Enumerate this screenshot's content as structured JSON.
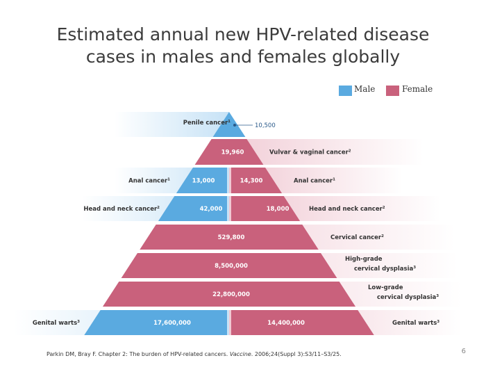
{
  "title_lines": [
    "Estimated annual new HPV-related disease",
    "cases in males and females globally"
  ],
  "legend": {
    "male": "Male",
    "female": "Female"
  },
  "colors": {
    "male": "#5aaae0",
    "female": "#c9617c",
    "male_fade": "#c6e2f6",
    "female_fade": "#f0c9d3",
    "label_text": "#333333",
    "value_text": "#ffffff"
  },
  "citation": {
    "prefix": "Parkin DM, Bray F. Chapter 2: The burden of HPV-related cancers.",
    "journal": "Vaccine",
    "suffix": ". 2006;24(Suppl  3):S3/11–S3/25."
  },
  "page_number": "6",
  "chart_data": {
    "type": "bar",
    "title": "Estimated annual new HPV-related disease cases in males and females globally",
    "series": [
      {
        "name": "Male",
        "values": [
          10500,
          null,
          13000,
          42000,
          null,
          null,
          null,
          17600000
        ]
      },
      {
        "name": "Female",
        "values": [
          null,
          19960,
          14300,
          18000,
          529800,
          8500000,
          22800000,
          14400000
        ]
      }
    ],
    "rows": [
      {
        "category": "Penile cancer",
        "male_label": "Penile cancer",
        "male_sup": "1",
        "male_value": "10,500"
      },
      {
        "category": "Vulvar & vaginal cancer",
        "female_label": "Vulvar & vaginal cancer",
        "female_sup": "2",
        "female_value": "19,960"
      },
      {
        "category": "Anal cancer",
        "male_label": "Anal cancer",
        "male_sup": "1",
        "male_value": "13,000",
        "female_label": "Anal cancer",
        "female_sup": "1",
        "female_value": "14,300"
      },
      {
        "category": "Head and neck cancer",
        "male_label": "Head and neck cancer",
        "male_sup": "2",
        "male_value": "42,000",
        "female_label": "Head and neck cancer",
        "female_sup": "2",
        "female_value": "18,000"
      },
      {
        "category": "Cervical cancer",
        "female_label": "Cervical cancer",
        "female_sup": "2",
        "female_value": "529,800"
      },
      {
        "category": "High-grade cervical dysplasia",
        "female_label_lines": [
          "High-grade",
          "cervical dysplasia"
        ],
        "female_sup": "3",
        "female_value": "8,500,000"
      },
      {
        "category": "Low-grade cervical dysplasia",
        "female_label_lines": [
          "Low-grade",
          "cervical dysplasia"
        ],
        "female_sup": "3",
        "female_value": "22,800,000"
      },
      {
        "category": "Genital warts",
        "male_label": "Genital warts",
        "male_sup": "3",
        "male_value": "17,600,000",
        "female_label": "Genital warts",
        "female_sup": "3",
        "female_value": "14,400,000"
      }
    ]
  }
}
